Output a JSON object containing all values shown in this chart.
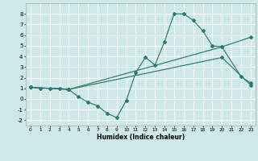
{
  "xlabel": "Humidex (Indice chaleur)",
  "xlim": [
    -0.5,
    23.5
  ],
  "ylim": [
    -2.5,
    9.0
  ],
  "yticks": [
    -2,
    -1,
    0,
    1,
    2,
    3,
    4,
    5,
    6,
    7,
    8
  ],
  "xticks": [
    0,
    1,
    2,
    3,
    4,
    5,
    6,
    7,
    8,
    9,
    10,
    11,
    12,
    13,
    14,
    15,
    16,
    17,
    18,
    19,
    20,
    21,
    22,
    23
  ],
  "bg_color": "#cfe8e8",
  "grid_color": "#ffffff",
  "line_color": "#2a7a72",
  "line1_x": [
    0,
    1,
    2,
    3,
    4,
    5,
    6,
    7,
    8,
    9,
    10,
    11,
    12,
    13,
    14,
    15,
    16,
    17,
    18,
    19,
    20,
    22,
    23
  ],
  "line1_y": [
    1.1,
    1.0,
    1.0,
    1.0,
    0.9,
    0.2,
    -0.3,
    -0.65,
    -1.35,
    -1.75,
    -0.15,
    2.5,
    3.9,
    3.2,
    5.4,
    8.0,
    8.0,
    7.4,
    6.4,
    5.0,
    4.9,
    2.1,
    1.5
  ],
  "line2_x": [
    0,
    4,
    20,
    23
  ],
  "line2_y": [
    1.1,
    0.9,
    4.9,
    5.8
  ],
  "line3_x": [
    0,
    4,
    20,
    23
  ],
  "line3_y": [
    1.1,
    0.9,
    3.9,
    1.3
  ]
}
